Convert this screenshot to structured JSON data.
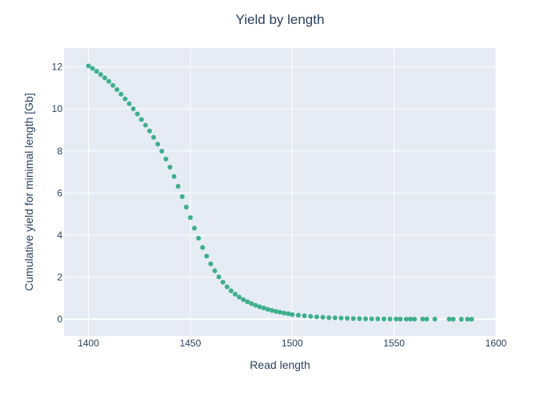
{
  "chart_data": {
    "type": "scatter",
    "title": "Yield by length",
    "xlabel": "Read length",
    "ylabel": "Cumulative yield for minimal length [Gb]",
    "xlim": [
      1388,
      1600
    ],
    "ylim": [
      -0.8,
      12.9
    ],
    "x_ticks": [
      1400,
      1450,
      1500,
      1550,
      1600
    ],
    "y_ticks": [
      0,
      2,
      4,
      6,
      8,
      10,
      12
    ],
    "grid": true,
    "legend": "none",
    "colors": {
      "marker": "#3fae8c",
      "plot_background": "#e5ecf6",
      "grid": "#ffffff",
      "text": "#2a3f5f"
    },
    "series": [
      {
        "name": "",
        "x": [
          1400,
          1402,
          1404,
          1406,
          1408,
          1410,
          1412,
          1414,
          1416,
          1418,
          1420,
          1422,
          1424,
          1426,
          1428,
          1430,
          1432,
          1434,
          1436,
          1438,
          1440,
          1442,
          1444,
          1446,
          1448,
          1450,
          1452,
          1454,
          1456,
          1458,
          1460,
          1462,
          1464,
          1466,
          1468,
          1470,
          1472,
          1474,
          1476,
          1478,
          1480,
          1482,
          1484,
          1486,
          1488,
          1490,
          1492,
          1494,
          1496,
          1498,
          1500,
          1503,
          1506,
          1509,
          1512,
          1515,
          1518,
          1521,
          1524,
          1527,
          1530,
          1533,
          1536,
          1539,
          1542,
          1545,
          1548,
          1551,
          1553,
          1556,
          1558,
          1560,
          1564,
          1566,
          1570,
          1577,
          1579,
          1583,
          1586,
          1588
        ],
        "y": [
          12.05,
          11.93,
          11.79,
          11.64,
          11.48,
          11.31,
          11.12,
          10.92,
          10.7,
          10.48,
          10.25,
          10.01,
          9.76,
          9.5,
          9.23,
          8.95,
          8.65,
          8.33,
          7.99,
          7.62,
          7.23,
          6.79,
          6.32,
          5.83,
          5.33,
          4.83,
          4.33,
          3.85,
          3.41,
          3.0,
          2.63,
          2.3,
          2.01,
          1.76,
          1.54,
          1.35,
          1.19,
          1.05,
          0.93,
          0.83,
          0.74,
          0.66,
          0.59,
          0.53,
          0.47,
          0.42,
          0.37,
          0.33,
          0.29,
          0.26,
          0.22,
          0.19,
          0.16,
          0.13,
          0.11,
          0.09,
          0.07,
          0.06,
          0.05,
          0.04,
          0.03,
          0.025,
          0.02,
          0.015,
          0.012,
          0.01,
          0.008,
          0.007,
          0.006,
          0.005,
          0.004,
          0.004,
          0.003,
          0.003,
          0.002,
          0.002,
          0.001,
          0.001,
          0.001,
          0.001
        ]
      }
    ]
  }
}
